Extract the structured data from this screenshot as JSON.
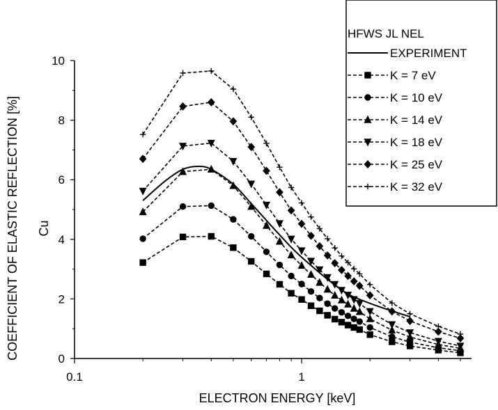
{
  "chart_data": {
    "type": "line",
    "xscale": "log",
    "xlabel": "ELECTRON ENERGY [keV]",
    "ylabel": "COEFFICIENT OF ELASTIC REFLECTION [%]",
    "ylabel2": "Cu",
    "xlim": [
      0.1,
      5.6
    ],
    "ylim": [
      0,
      10
    ],
    "x_ticks": [
      0.1,
      1
    ],
    "x_tick_labels": [
      "0.1",
      "1"
    ],
    "y_ticks": [
      0,
      2,
      4,
      6,
      8,
      10
    ],
    "y_tick_labels": [
      "0",
      "2",
      "4",
      "6",
      "8",
      "10"
    ],
    "grid": false,
    "legend": {
      "title": "HFWS JL NEL",
      "placement": "top-right"
    },
    "series": [
      {
        "name": "EXPERIMENT",
        "style": "solid",
        "marker": "none",
        "x": [
          0.2,
          0.25,
          0.3,
          0.35,
          0.4,
          0.5,
          0.6,
          0.8,
          1.0,
          1.5,
          2.0,
          3.0
        ],
        "y": [
          5.3,
          5.95,
          6.35,
          6.45,
          6.35,
          5.85,
          5.2,
          4.15,
          3.4,
          2.3,
          1.85,
          1.4
        ]
      },
      {
        "name": "K =  7 eV",
        "style": "dashed",
        "marker": "square",
        "x": [
          0.2,
          0.3,
          0.4,
          0.5,
          0.6,
          0.7,
          0.8,
          0.9,
          1.0,
          1.1,
          1.2,
          1.3,
          1.4,
          1.5,
          1.6,
          1.7,
          1.8,
          2.0,
          2.5,
          3.0,
          4.0,
          5.0
        ],
        "y": [
          3.22,
          4.08,
          4.1,
          3.72,
          3.26,
          2.84,
          2.49,
          2.19,
          1.98,
          1.77,
          1.6,
          1.45,
          1.32,
          1.22,
          1.12,
          1.04,
          0.97,
          0.8,
          0.56,
          0.42,
          0.28,
          0.19
        ]
      },
      {
        "name": "K = 10 eV",
        "style": "dashed",
        "marker": "circle",
        "x": [
          0.2,
          0.3,
          0.4,
          0.5,
          0.6,
          0.7,
          0.8,
          0.9,
          1.0,
          1.1,
          1.2,
          1.3,
          1.4,
          1.5,
          1.6,
          1.7,
          1.8,
          2.0,
          2.5,
          3.0,
          4.0,
          5.0
        ],
        "y": [
          4.02,
          5.1,
          5.13,
          4.67,
          4.1,
          3.58,
          3.14,
          2.77,
          2.5,
          2.25,
          2.03,
          1.84,
          1.68,
          1.55,
          1.43,
          1.33,
          1.24,
          1.04,
          0.73,
          0.55,
          0.36,
          0.26
        ]
      },
      {
        "name": "K = 14 eV",
        "style": "dashed",
        "marker": "triangle-up",
        "x": [
          0.2,
          0.3,
          0.4,
          0.5,
          0.6,
          0.7,
          0.8,
          0.9,
          1.0,
          1.1,
          1.2,
          1.3,
          1.4,
          1.5,
          1.6,
          1.7,
          1.8,
          2.0,
          2.5,
          3.0,
          4.0,
          5.0
        ],
        "y": [
          4.92,
          6.27,
          6.35,
          5.8,
          5.1,
          4.46,
          3.93,
          3.47,
          3.12,
          2.82,
          2.55,
          2.32,
          2.12,
          1.96,
          1.82,
          1.68,
          1.57,
          1.33,
          0.95,
          0.72,
          0.47,
          0.34
        ]
      },
      {
        "name": "K = 18 eV",
        "style": "dashed",
        "marker": "triangle-down",
        "x": [
          0.2,
          0.3,
          0.4,
          0.5,
          0.6,
          0.7,
          0.8,
          0.9,
          1.0,
          1.1,
          1.2,
          1.3,
          1.4,
          1.5,
          1.6,
          1.7,
          1.8,
          2.0,
          2.5,
          3.0,
          4.0,
          5.0
        ],
        "y": [
          5.62,
          7.13,
          7.23,
          6.62,
          5.86,
          5.15,
          4.53,
          4.01,
          3.62,
          3.27,
          2.98,
          2.72,
          2.49,
          2.29,
          2.13,
          1.98,
          1.85,
          1.58,
          1.14,
          0.87,
          0.58,
          0.42
        ]
      },
      {
        "name": "K = 25 eV",
        "style": "dashed",
        "marker": "diamond",
        "x": [
          0.2,
          0.3,
          0.4,
          0.5,
          0.6,
          0.7,
          0.8,
          0.9,
          1.0,
          1.1,
          1.2,
          1.3,
          1.4,
          1.5,
          1.6,
          1.7,
          1.8,
          2.0,
          2.5,
          3.0,
          4.0,
          5.0
        ],
        "y": [
          6.7,
          8.46,
          8.6,
          7.96,
          7.1,
          6.3,
          5.58,
          4.97,
          4.52,
          4.12,
          3.77,
          3.46,
          3.2,
          2.97,
          2.77,
          2.59,
          2.44,
          2.12,
          1.58,
          1.26,
          0.9,
          0.68
        ]
      },
      {
        "name": "K = 32 eV",
        "style": "dashed",
        "marker": "plus",
        "x": [
          0.2,
          0.3,
          0.4,
          0.5,
          0.6,
          0.7,
          0.8,
          0.9,
          1.0,
          1.1,
          1.2,
          1.3,
          1.4,
          1.5,
          1.6,
          1.7,
          1.8,
          2.0,
          2.5,
          3.0,
          4.0,
          5.0
        ],
        "y": [
          7.52,
          9.58,
          9.65,
          9.04,
          8.1,
          7.22,
          6.42,
          5.74,
          5.22,
          4.75,
          4.36,
          4.02,
          3.71,
          3.44,
          3.22,
          3.01,
          2.84,
          2.48,
          1.86,
          1.5,
          1.08,
          0.82
        ]
      }
    ]
  }
}
